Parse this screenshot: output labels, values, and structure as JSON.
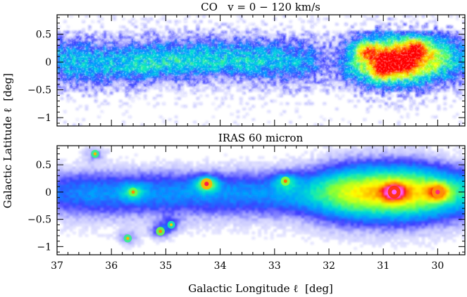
{
  "chart_data": [
    {
      "type": "heatmap",
      "title": "CO   v = 0 − 120 km/s",
      "xlabel": "Galactic Longitude ℓ  [deg]",
      "ylabel": "Galactic Latitude ℓ  [deg]",
      "xlim": [
        37,
        29.5
      ],
      "ylim": [
        -1.15,
        0.85
      ],
      "yticks": [
        {
          "value": 0.5,
          "label": "0.5"
        },
        {
          "value": 0,
          "label": "0"
        },
        {
          "value": -0.5,
          "label": "−0.5"
        },
        {
          "value": -1,
          "label": "−1"
        }
      ],
      "colormap": [
        "#ffffff",
        "#c8c8ff",
        "#3c3cff",
        "#00a0ff",
        "#00e6c8",
        "#78ff3c",
        "#ffff00",
        "#ff8c00",
        "#ff0000"
      ],
      "features": [
        {
          "name": "peak",
          "l": 30.9,
          "b": 0.05,
          "intensity": 1.0
        },
        {
          "name": "peak",
          "l": 30.6,
          "b": -0.05,
          "intensity": 0.95
        },
        {
          "name": "peak",
          "l": 31.0,
          "b": -0.15,
          "intensity": 0.9
        },
        {
          "name": "peak",
          "l": 30.4,
          "b": 0.25,
          "intensity": 0.85
        },
        {
          "name": "peak",
          "l": 31.3,
          "b": 0.2,
          "intensity": 0.8
        }
      ]
    },
    {
      "type": "heatmap",
      "title": "IRAS 60 micron",
      "xlabel": "Galactic Longitude ℓ  [deg]",
      "ylabel": "Galactic Latitude ℓ  [deg]",
      "xlim": [
        37,
        29.5
      ],
      "ylim": [
        -1.15,
        0.85
      ],
      "xticks": [
        {
          "value": 37,
          "label": "37"
        },
        {
          "value": 36,
          "label": "36"
        },
        {
          "value": 35,
          "label": "35"
        },
        {
          "value": 34,
          "label": "34"
        },
        {
          "value": 33,
          "label": "33"
        },
        {
          "value": 32,
          "label": "32"
        },
        {
          "value": 31,
          "label": "31"
        },
        {
          "value": 30,
          "label": "30"
        }
      ],
      "yticks": [
        {
          "value": 0.5,
          "label": "0.5"
        },
        {
          "value": 0,
          "label": "0"
        },
        {
          "value": -0.5,
          "label": "−0.5"
        },
        {
          "value": -1,
          "label": "−1"
        }
      ],
      "colormap": [
        "#ffffff",
        "#c8c8ff",
        "#3c3cff",
        "#00a0ff",
        "#00e6c8",
        "#78ff3c",
        "#ffff00",
        "#ff8c00",
        "#ff0000",
        "#ff60ff"
      ],
      "features": [
        {
          "name": "point-source",
          "l": 30.8,
          "b": 0.0,
          "intensity": 1.0
        },
        {
          "name": "point-source",
          "l": 30.0,
          "b": 0.0,
          "intensity": 0.85
        },
        {
          "name": "point-source",
          "l": 34.25,
          "b": 0.15,
          "intensity": 0.8
        },
        {
          "name": "point-source",
          "l": 32.8,
          "b": 0.2,
          "intensity": 0.5
        },
        {
          "name": "point-source",
          "l": 35.6,
          "b": 0.0,
          "intensity": 0.45
        },
        {
          "name": "point-source",
          "l": 36.3,
          "b": 0.7,
          "intensity": 0.35
        },
        {
          "name": "point-source",
          "l": 35.1,
          "b": -0.72,
          "intensity": 0.45
        },
        {
          "name": "point-source",
          "l": 35.7,
          "b": -0.85,
          "intensity": 0.35
        },
        {
          "name": "point-source",
          "l": 34.9,
          "b": -0.6,
          "intensity": 0.3
        }
      ]
    }
  ]
}
